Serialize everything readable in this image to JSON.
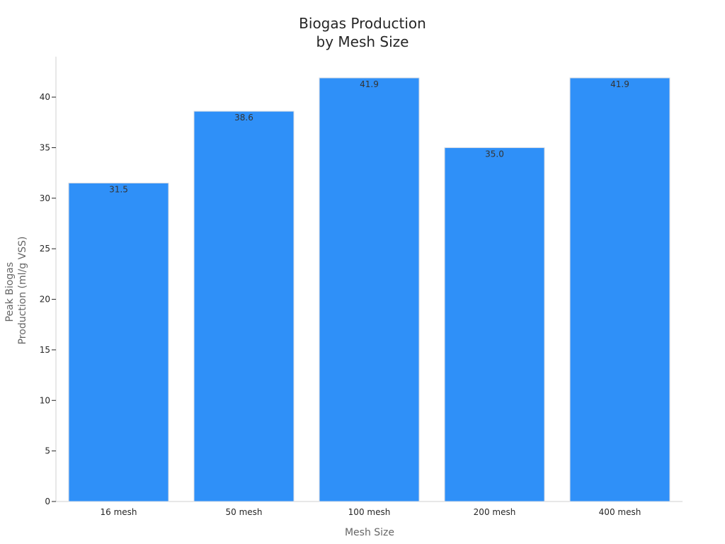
{
  "chart_data": {
    "type": "bar",
    "title": [
      "Biogas Production",
      "by Mesh Size"
    ],
    "xlabel": "Mesh Size",
    "ylabel": [
      "Peak Biogas",
      "Production (ml/g VSS)"
    ],
    "categories": [
      "16 mesh",
      "50 mesh",
      "100 mesh",
      "200 mesh",
      "400 mesh"
    ],
    "values": [
      31.5,
      38.6,
      41.9,
      35.0,
      41.9
    ],
    "data_labels": [
      "31.5",
      "38.6",
      "41.9",
      "35.0",
      "41.9"
    ],
    "ylim": [
      0,
      44
    ],
    "yticks": [
      0,
      5,
      10,
      15,
      20,
      25,
      30,
      35,
      40
    ],
    "ytick_labels": [
      "0",
      "5",
      "10",
      "15",
      "20",
      "25",
      "30",
      "35",
      "40"
    ],
    "grid": false,
    "legend": "none",
    "bar_color": "#2F90F8",
    "bar_edge_color": "#D8DCE3"
  }
}
